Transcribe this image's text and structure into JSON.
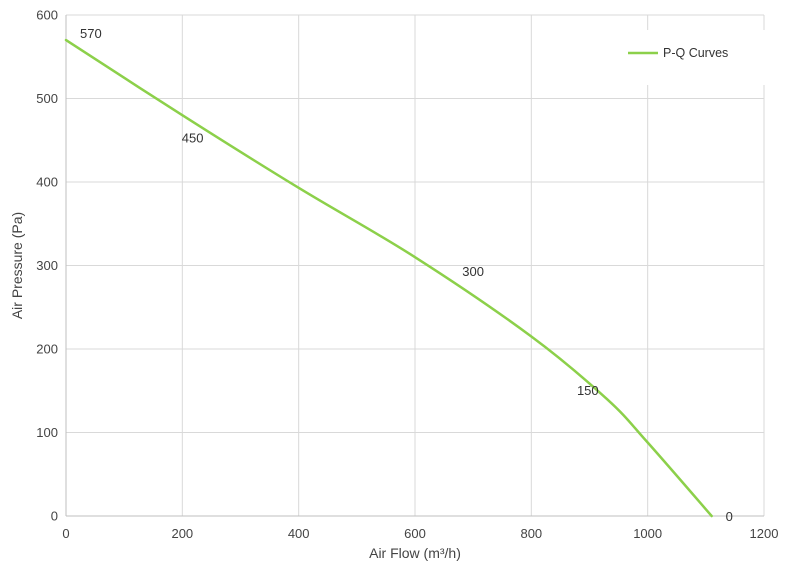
{
  "chart_data": {
    "type": "line",
    "xlabel": "Air Flow  (m³/h)",
    "ylabel": "Air Pressure  (Pa)",
    "xlim": [
      0,
      1200
    ],
    "ylim": [
      0,
      600
    ],
    "x_ticks": [
      0,
      200,
      400,
      600,
      800,
      1000,
      1200
    ],
    "y_ticks": [
      0,
      100,
      200,
      300,
      400,
      500,
      600
    ],
    "grid": true,
    "legend_position": "top-right",
    "series": [
      {
        "name": "P-Q Curves",
        "color": "#8cd04a",
        "x": [
          0,
          200,
          400,
          600,
          800,
          930,
          1000,
          1110
        ],
        "y": [
          570,
          480,
          393,
          310,
          215,
          140,
          88,
          0
        ]
      }
    ],
    "data_labels": [
      {
        "text": "570",
        "x": 0,
        "y": 570
      },
      {
        "text": "450",
        "x": 285,
        "y": 440
      },
      {
        "text": "300",
        "x": 640,
        "y": 290
      },
      {
        "text": "150",
        "x": 930,
        "y": 140
      },
      {
        "text": "0",
        "x": 1110,
        "y": 0
      }
    ]
  }
}
